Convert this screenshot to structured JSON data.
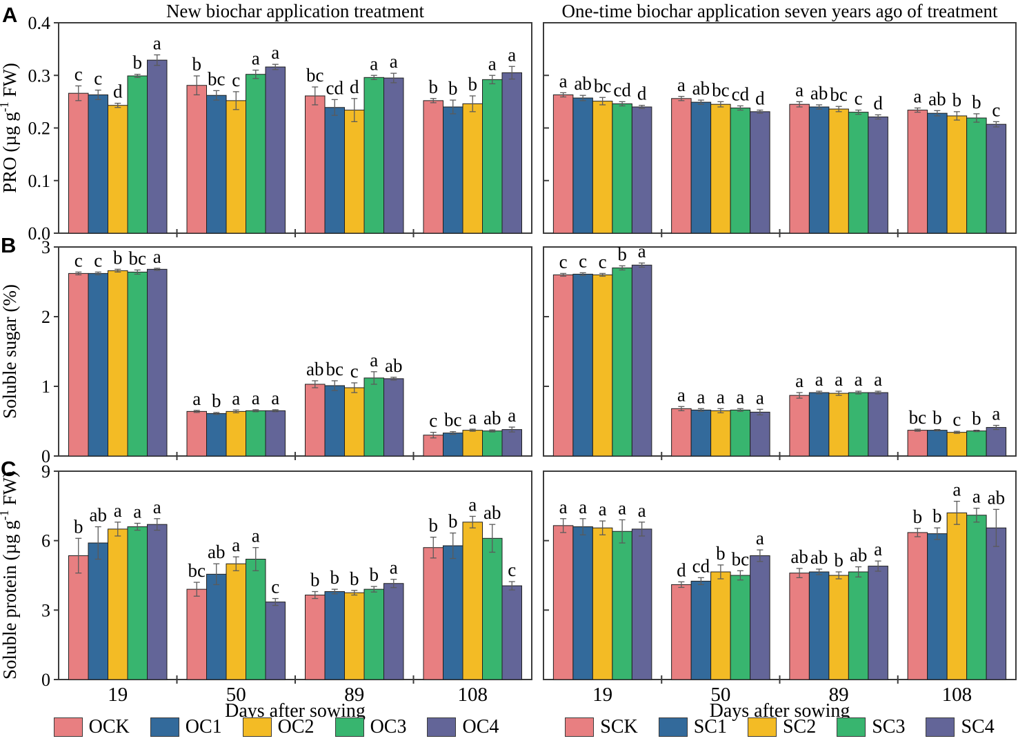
{
  "figure": {
    "panel_labels": {
      "A": "A",
      "B": "B",
      "C": "C"
    },
    "column_titles": {
      "left": "New biochar application treatment",
      "right": "One-time biochar application seven years ago of treatment"
    },
    "x_axis_title": "Days after sowing",
    "categories": [
      "19",
      "50",
      "89",
      "108"
    ],
    "colors": {
      "ck": "#E87F81",
      "c1": "#336A9B",
      "c2": "#F3BB25",
      "c3": "#38B56F",
      "c4": "#636598",
      "frame": "#3b3b3b",
      "error_bar": "#5a5a5a"
    },
    "legend_left": {
      "items": [
        "OCK",
        "OC1",
        "OC2",
        "OC3",
        "OC4"
      ]
    },
    "legend_right": {
      "items": [
        "SCK",
        "SC1",
        "SC2",
        "SC3",
        "SC4"
      ]
    }
  },
  "chart_data": [
    {
      "id": "A_left",
      "type": "bar",
      "ylabel": {
        "pre": "PRO (µg g",
        "sup": "-1",
        "post": " FW)"
      },
      "ylim": [
        0,
        0.4
      ],
      "yticks": [
        {
          "v": 0.0,
          "label": "0.0"
        },
        {
          "v": 0.1,
          "label": "0.1"
        },
        {
          "v": 0.2,
          "label": "0.2"
        },
        {
          "v": 0.3,
          "label": "0.3"
        },
        {
          "v": 0.4,
          "label": "0.4"
        }
      ],
      "categories": [
        "19",
        "50",
        "89",
        "108"
      ],
      "series": [
        {
          "name": "OCK",
          "color": "#E87F81",
          "values": [
            0.266,
            0.281,
            0.261,
            0.252
          ],
          "errors": [
            0.014,
            0.018,
            0.017,
            0.004
          ],
          "letters": [
            "c",
            "b",
            "bc",
            "b"
          ]
        },
        {
          "name": "OC1",
          "color": "#336A9B",
          "values": [
            0.263,
            0.262,
            0.239,
            0.24
          ],
          "errors": [
            0.009,
            0.009,
            0.015,
            0.013
          ],
          "letters": [
            "c",
            "bc",
            "cd",
            "b"
          ]
        },
        {
          "name": "OC2",
          "color": "#F3BB25",
          "values": [
            0.243,
            0.252,
            0.234,
            0.246
          ],
          "errors": [
            0.004,
            0.017,
            0.022,
            0.015
          ],
          "letters": [
            "d",
            "c",
            "d",
            "b"
          ]
        },
        {
          "name": "OC3",
          "color": "#38B56F",
          "values": [
            0.299,
            0.302,
            0.296,
            0.292
          ],
          "errors": [
            0.003,
            0.008,
            0.004,
            0.008
          ],
          "letters": [
            "b",
            "a",
            "a",
            "a"
          ]
        },
        {
          "name": "OC4",
          "color": "#636598",
          "values": [
            0.329,
            0.316,
            0.295,
            0.305
          ],
          "errors": [
            0.01,
            0.005,
            0.009,
            0.012
          ],
          "letters": [
            "a",
            "a",
            "a",
            "a"
          ]
        }
      ]
    },
    {
      "id": "A_right",
      "type": "bar",
      "ylabel": null,
      "ylim": [
        0,
        0.4
      ],
      "yticks": [
        {
          "v": 0.0,
          "label": "0.0"
        },
        {
          "v": 0.1,
          "label": "0.1"
        },
        {
          "v": 0.2,
          "label": "0.2"
        },
        {
          "v": 0.3,
          "label": "0.3"
        },
        {
          "v": 0.4,
          "label": "0.4"
        }
      ],
      "categories": [
        "19",
        "50",
        "89",
        "108"
      ],
      "series": [
        {
          "name": "SCK",
          "color": "#E87F81",
          "values": [
            0.263,
            0.256,
            0.245,
            0.234
          ],
          "errors": [
            0.004,
            0.004,
            0.005,
            0.004
          ],
          "letters": [
            "a",
            "a",
            "a",
            "a"
          ]
        },
        {
          "name": "SC1",
          "color": "#336A9B",
          "values": [
            0.257,
            0.249,
            0.24,
            0.228
          ],
          "errors": [
            0.005,
            0.004,
            0.004,
            0.005
          ],
          "letters": [
            "ab",
            "ab",
            "ab",
            "ab"
          ]
        },
        {
          "name": "SC2",
          "color": "#F3BB25",
          "values": [
            0.251,
            0.245,
            0.236,
            0.223
          ],
          "errors": [
            0.007,
            0.005,
            0.005,
            0.008
          ],
          "letters": [
            "bc",
            "bc",
            "bc",
            "b"
          ]
        },
        {
          "name": "SC3",
          "color": "#38B56F",
          "values": [
            0.246,
            0.238,
            0.23,
            0.219
          ],
          "errors": [
            0.004,
            0.004,
            0.004,
            0.008
          ],
          "letters": [
            "cd",
            "cd",
            "c",
            "b"
          ]
        },
        {
          "name": "SC4",
          "color": "#636598",
          "values": [
            0.24,
            0.231,
            0.221,
            0.207
          ],
          "errors": [
            0.003,
            0.003,
            0.004,
            0.005
          ],
          "letters": [
            "d",
            "d",
            "d",
            "c"
          ]
        }
      ]
    },
    {
      "id": "B_left",
      "type": "bar",
      "ylabel": {
        "pre": "Soluble sugar (%)",
        "sup": "",
        "post": ""
      },
      "ylim": [
        0,
        3
      ],
      "yticks": [
        {
          "v": 0,
          "label": "0"
        },
        {
          "v": 1,
          "label": "1"
        },
        {
          "v": 2,
          "label": "2"
        },
        {
          "v": 3,
          "label": "3"
        }
      ],
      "categories": [
        "19",
        "50",
        "89",
        "108"
      ],
      "series": [
        {
          "name": "OCK",
          "color": "#E87F81",
          "values": [
            2.62,
            0.64,
            1.03,
            0.3
          ],
          "errors": [
            0.02,
            0.015,
            0.05,
            0.04
          ],
          "letters": [
            "c",
            "a",
            "ab",
            "c"
          ]
        },
        {
          "name": "OC1",
          "color": "#336A9B",
          "values": [
            2.62,
            0.61,
            1.01,
            0.33
          ],
          "errors": [
            0.02,
            0.015,
            0.07,
            0.02
          ],
          "letters": [
            "c",
            "b",
            "bc",
            "bc"
          ]
        },
        {
          "name": "OC2",
          "color": "#F3BB25",
          "values": [
            2.66,
            0.64,
            0.98,
            0.37
          ],
          "errors": [
            0.02,
            0.02,
            0.07,
            0.015
          ],
          "letters": [
            "b",
            "a",
            "c",
            "a"
          ]
        },
        {
          "name": "OC3",
          "color": "#38B56F",
          "values": [
            2.64,
            0.65,
            1.12,
            0.36
          ],
          "errors": [
            0.03,
            0.015,
            0.09,
            0.015
          ],
          "letters": [
            "bc",
            "a",
            "a",
            "ab"
          ]
        },
        {
          "name": "OC4",
          "color": "#636598",
          "values": [
            2.68,
            0.65,
            1.11,
            0.38
          ],
          "errors": [
            0.015,
            0.015,
            0.02,
            0.035
          ],
          "letters": [
            "a",
            "a",
            "ab",
            "a"
          ]
        }
      ]
    },
    {
      "id": "B_right",
      "type": "bar",
      "ylabel": null,
      "ylim": [
        0,
        3
      ],
      "yticks": [
        {
          "v": 0,
          "label": "0"
        },
        {
          "v": 1,
          "label": "1"
        },
        {
          "v": 2,
          "label": "2"
        },
        {
          "v": 3,
          "label": "3"
        }
      ],
      "categories": [
        "19",
        "50",
        "89",
        "108"
      ],
      "series": [
        {
          "name": "SCK",
          "color": "#E87F81",
          "values": [
            2.6,
            0.68,
            0.87,
            0.37
          ],
          "errors": [
            0.02,
            0.03,
            0.04,
            0.015
          ],
          "letters": [
            "c",
            "a",
            "a",
            "bc"
          ]
        },
        {
          "name": "SC1",
          "color": "#336A9B",
          "values": [
            2.61,
            0.66,
            0.91,
            0.37
          ],
          "errors": [
            0.02,
            0.02,
            0.02,
            0.01
          ],
          "letters": [
            "c",
            "a",
            "a",
            "b"
          ]
        },
        {
          "name": "SC2",
          "color": "#F3BB25",
          "values": [
            2.6,
            0.65,
            0.9,
            0.34
          ],
          "errors": [
            0.02,
            0.03,
            0.03,
            0.015
          ],
          "letters": [
            "c",
            "a",
            "a",
            "c"
          ]
        },
        {
          "name": "SC3",
          "color": "#38B56F",
          "values": [
            2.7,
            0.66,
            0.91,
            0.36
          ],
          "errors": [
            0.03,
            0.02,
            0.02,
            0.01
          ],
          "letters": [
            "b",
            "a",
            "a",
            "b"
          ]
        },
        {
          "name": "SC4",
          "color": "#636598",
          "values": [
            2.74,
            0.63,
            0.91,
            0.41
          ],
          "errors": [
            0.03,
            0.04,
            0.02,
            0.03
          ],
          "letters": [
            "a",
            "a",
            "a",
            "a"
          ]
        }
      ]
    },
    {
      "id": "C_left",
      "type": "bar",
      "ylabel": {
        "pre": "Soluble protein (µg g",
        "sup": "-1",
        "post": " FW)"
      },
      "ylim": [
        0,
        9
      ],
      "yticks": [
        {
          "v": 0,
          "label": "0"
        },
        {
          "v": 3,
          "label": "3"
        },
        {
          "v": 6,
          "label": "6"
        },
        {
          "v": 9,
          "label": "9"
        }
      ],
      "categories": [
        "19",
        "50",
        "89",
        "108"
      ],
      "series": [
        {
          "name": "OCK",
          "color": "#E87F81",
          "values": [
            5.35,
            3.9,
            3.65,
            5.7
          ],
          "errors": [
            0.75,
            0.3,
            0.15,
            0.45
          ],
          "letters": [
            "b",
            "bc",
            "b",
            "b"
          ]
        },
        {
          "name": "OC1",
          "color": "#336A9B",
          "values": [
            5.9,
            4.55,
            3.8,
            5.78
          ],
          "errors": [
            0.7,
            0.45,
            0.1,
            0.55
          ],
          "letters": [
            "ab",
            "ab",
            "b",
            "b"
          ]
        },
        {
          "name": "OC2",
          "color": "#F3BB25",
          "values": [
            6.5,
            5.0,
            3.75,
            6.8
          ],
          "errors": [
            0.3,
            0.3,
            0.1,
            0.25
          ],
          "letters": [
            "a",
            "a",
            "b",
            "a"
          ]
        },
        {
          "name": "OC3",
          "color": "#38B56F",
          "values": [
            6.6,
            5.2,
            3.9,
            6.1
          ],
          "errors": [
            0.15,
            0.5,
            0.12,
            0.6
          ],
          "letters": [
            "a",
            "a",
            "b",
            "ab"
          ]
        },
        {
          "name": "OC4",
          "color": "#636598",
          "values": [
            6.7,
            3.35,
            4.15,
            4.05
          ],
          "errors": [
            0.25,
            0.15,
            0.18,
            0.18
          ],
          "letters": [
            "a",
            "c",
            "a",
            "c"
          ]
        }
      ]
    },
    {
      "id": "C_right",
      "type": "bar",
      "ylabel": null,
      "ylim": [
        0,
        9
      ],
      "yticks": [
        {
          "v": 0,
          "label": "0"
        },
        {
          "v": 3,
          "label": "3"
        },
        {
          "v": 6,
          "label": "6"
        },
        {
          "v": 9,
          "label": "9"
        }
      ],
      "categories": [
        "19",
        "50",
        "89",
        "108"
      ],
      "series": [
        {
          "name": "SCK",
          "color": "#E87F81",
          "values": [
            6.65,
            4.1,
            4.6,
            6.35
          ],
          "errors": [
            0.3,
            0.12,
            0.2,
            0.18
          ],
          "letters": [
            "a",
            "d",
            "ab",
            "b"
          ]
        },
        {
          "name": "SC1",
          "color": "#336A9B",
          "values": [
            6.6,
            4.25,
            4.65,
            6.3
          ],
          "errors": [
            0.35,
            0.15,
            0.12,
            0.25
          ],
          "letters": [
            "a",
            "cd",
            "ab",
            "b"
          ]
        },
        {
          "name": "SC2",
          "color": "#F3BB25",
          "values": [
            6.55,
            4.65,
            4.5,
            7.2
          ],
          "errors": [
            0.3,
            0.3,
            0.15,
            0.5
          ],
          "letters": [
            "a",
            "b",
            "b",
            "a"
          ]
        },
        {
          "name": "SC3",
          "color": "#38B56F",
          "values": [
            6.4,
            4.5,
            4.65,
            7.1
          ],
          "errors": [
            0.5,
            0.2,
            0.22,
            0.3
          ],
          "letters": [
            "a",
            "bc",
            "ab",
            "a"
          ]
        },
        {
          "name": "SC4",
          "color": "#636598",
          "values": [
            6.5,
            5.35,
            4.9,
            6.55
          ],
          "errors": [
            0.3,
            0.25,
            0.22,
            0.8
          ],
          "letters": [
            "a",
            "a",
            "a",
            "ab"
          ]
        }
      ]
    }
  ]
}
